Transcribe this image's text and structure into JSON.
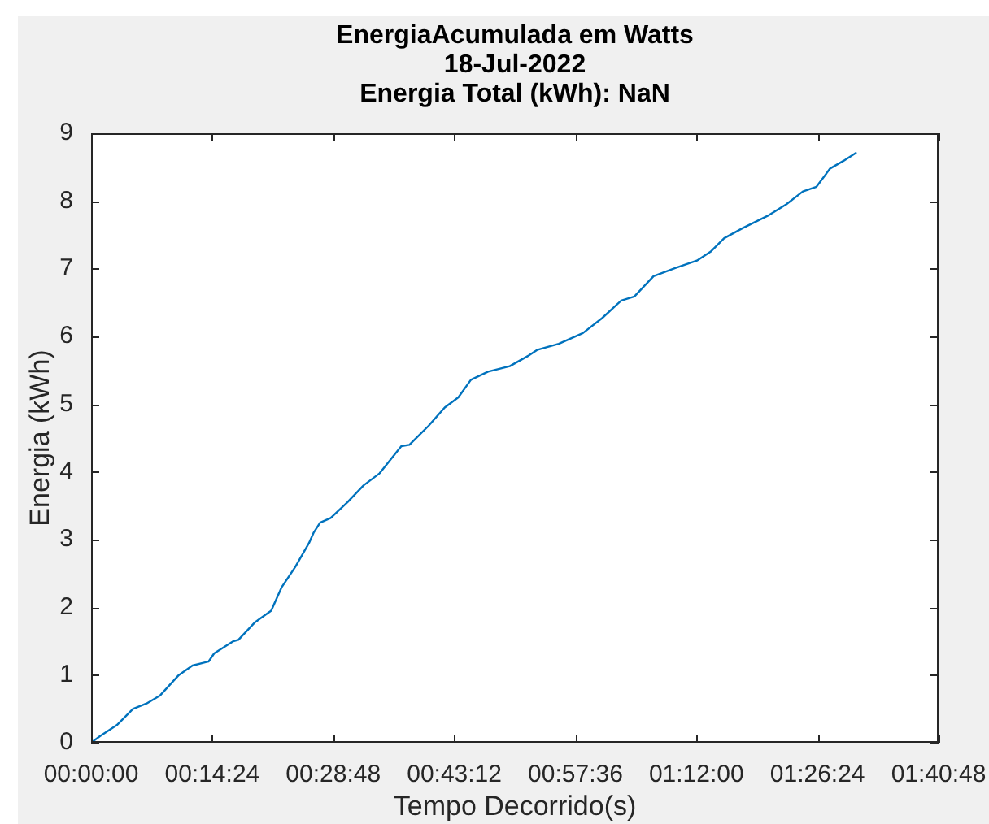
{
  "chart_data": {
    "type": "line",
    "title": "EnergiaAcumulada em Watts\n18-Jul-2022\nEnergia Total (kWh): NaN",
    "xlabel": "Tempo Decorrido(s)",
    "ylabel": "Energia (kWh)",
    "x": [
      0,
      0.018,
      0.051,
      0.083,
      0.11,
      0.137,
      0.174,
      0.201,
      0.233,
      0.244,
      0.282,
      0.292,
      0.325,
      0.357,
      0.378,
      0.405,
      0.432,
      0.441,
      0.454,
      0.475,
      0.508,
      0.54,
      0.572,
      0.615,
      0.631,
      0.669,
      0.701,
      0.728,
      0.753,
      0.787,
      0.83,
      0.868,
      0.884,
      0.927,
      0.975,
      1.013,
      1.051,
      1.077,
      1.115,
      1.158,
      1.201,
      1.228,
      1.255,
      1.292,
      1.341,
      1.378,
      1.411,
      1.438,
      1.465,
      1.491,
      1.516
    ],
    "values": [
      0,
      0.1,
      0.26,
      0.5,
      0.58,
      0.7,
      1.0,
      1.14,
      1.2,
      1.32,
      1.5,
      1.52,
      1.78,
      1.95,
      2.3,
      2.6,
      2.95,
      3.1,
      3.25,
      3.32,
      3.55,
      3.8,
      3.98,
      4.38,
      4.4,
      4.68,
      4.95,
      5.1,
      5.36,
      5.48,
      5.56,
      5.72,
      5.8,
      5.89,
      6.05,
      6.27,
      6.53,
      6.59,
      6.89,
      7.01,
      7.12,
      7.25,
      7.45,
      7.6,
      7.78,
      7.95,
      8.14,
      8.21,
      8.48,
      8.59,
      8.71
    ],
    "color": "#0072bd",
    "marker": "none",
    "line_style": "solid",
    "xlim": [
      0,
      1.68
    ],
    "xticks": [
      {
        "value": 0,
        "label": "00:00:00"
      },
      {
        "value": 0.24,
        "label": "00:14:24"
      },
      {
        "value": 0.48,
        "label": "00:28:48"
      },
      {
        "value": 0.72,
        "label": "00:43:12"
      },
      {
        "value": 0.96,
        "label": "00:57:36"
      },
      {
        "value": 1.2,
        "label": "01:12:00"
      },
      {
        "value": 1.44,
        "label": "01:26:24"
      },
      {
        "value": 1.68,
        "label": "01:40:48"
      }
    ],
    "ylim": [
      0,
      9
    ],
    "yticks": [
      0,
      1,
      2,
      3,
      4,
      5,
      6,
      7,
      8,
      9
    ]
  }
}
